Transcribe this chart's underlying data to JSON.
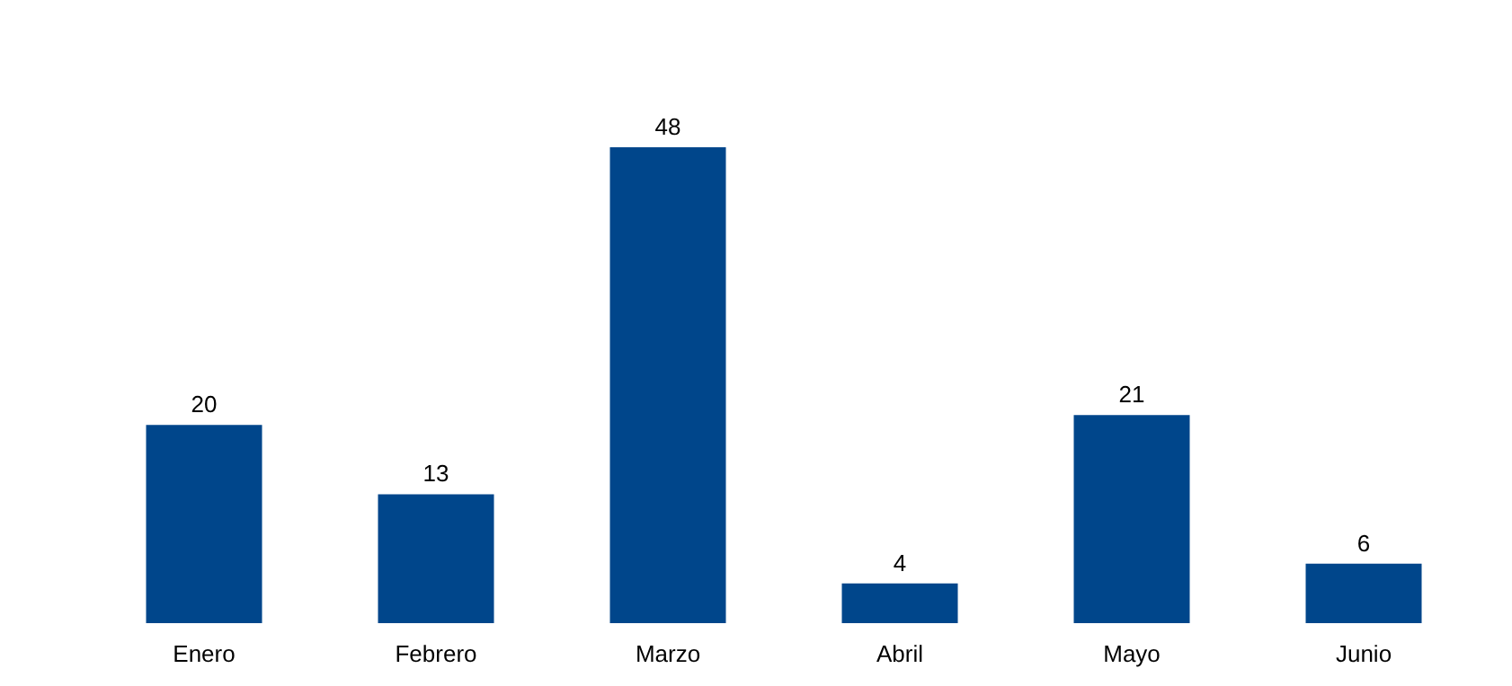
{
  "chart_data": {
    "type": "bar",
    "categories": [
      "Enero",
      "Febrero",
      "Marzo",
      "Abril",
      "Mayo",
      "Junio"
    ],
    "values": [
      20,
      13,
      48,
      4,
      21,
      6
    ],
    "color": "#00468b",
    "data_labels": true
  }
}
